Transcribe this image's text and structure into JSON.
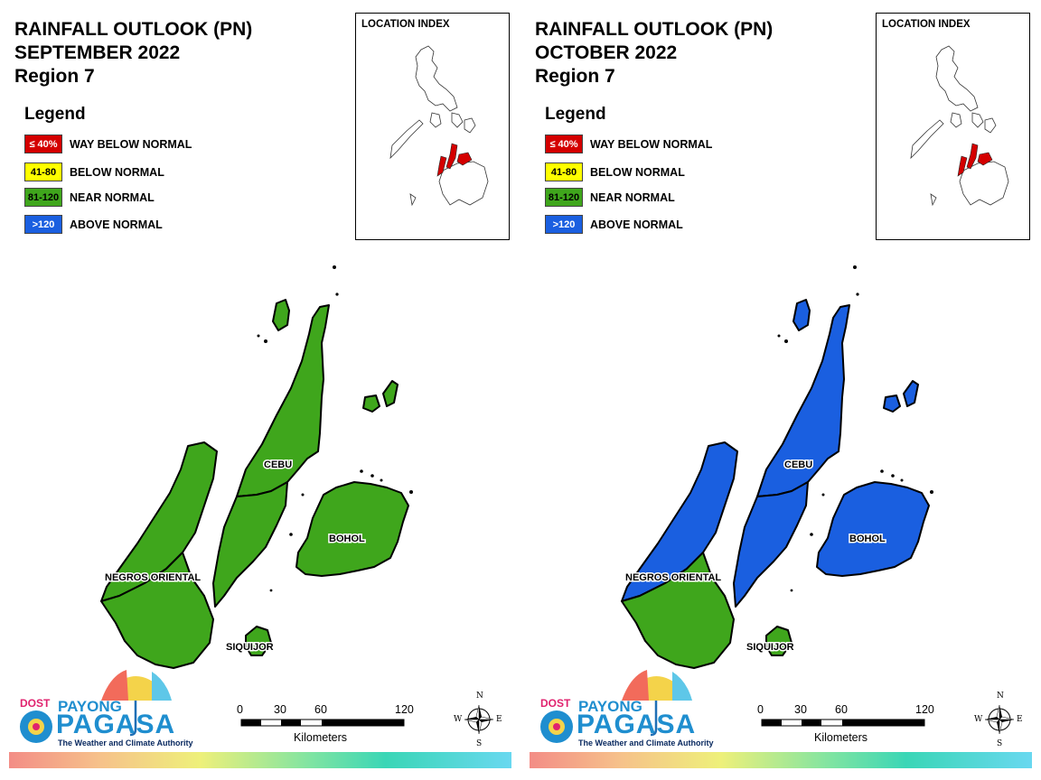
{
  "panels": [
    {
      "title_line1": "RAINFALL OUTLOOK (PN)",
      "title_line2": "SEPTEMBER 2022",
      "title_line3": "Region 7",
      "provinces": {
        "cebu_north": "near",
        "cebu_south": "near",
        "bohol": "near",
        "negros_north": "near",
        "negros_south": "near",
        "siquijor": "near"
      }
    },
    {
      "title_line1": "RAINFALL OUTLOOK (PN)",
      "title_line2": "OCTOBER 2022",
      "title_line3": "Region 7",
      "provinces": {
        "cebu_north": "above",
        "cebu_south": "above",
        "bohol": "above",
        "negros_north": "above",
        "negros_south": "near",
        "siquijor": "near"
      }
    }
  ],
  "legend": {
    "title": "Legend",
    "items": [
      {
        "range": "≤ 40%",
        "label": "WAY BELOW NORMAL",
        "color": "#d40000",
        "text_color": "#ffffff"
      },
      {
        "range": "41-80",
        "label": "BELOW NORMAL",
        "color": "#ffff00",
        "text_color": "#000000"
      },
      {
        "range": "81-120",
        "label": "NEAR NORMAL",
        "color": "#3fa61c",
        "text_color": "#000000"
      },
      {
        "range": ">120",
        "label": "ABOVE NORMAL",
        "color": "#1a5fe0",
        "text_color": "#ffffff"
      }
    ]
  },
  "location_index": {
    "title": "LOCATION INDEX"
  },
  "place_labels": {
    "cebu": "CEBU",
    "bohol": "BOHOL",
    "negros": "NEGROS ORIENTAL",
    "siquijor": "SIQUIJOR"
  },
  "scale_bar": {
    "ticks": [
      "0",
      "30",
      "60",
      "120"
    ],
    "unit": "Kilometers"
  },
  "compass": {
    "n": "N",
    "s": "S",
    "e": "E",
    "w": "W"
  },
  "logo": {
    "dost": "DOST",
    "payong": "PAYONG",
    "pagasa": "PAGASA",
    "tagline": "The Weather and Climate Authority"
  },
  "colors": {
    "near": "#3fa61c",
    "above": "#1a5fe0",
    "way_below": "#d40000",
    "below": "#ffff00"
  }
}
